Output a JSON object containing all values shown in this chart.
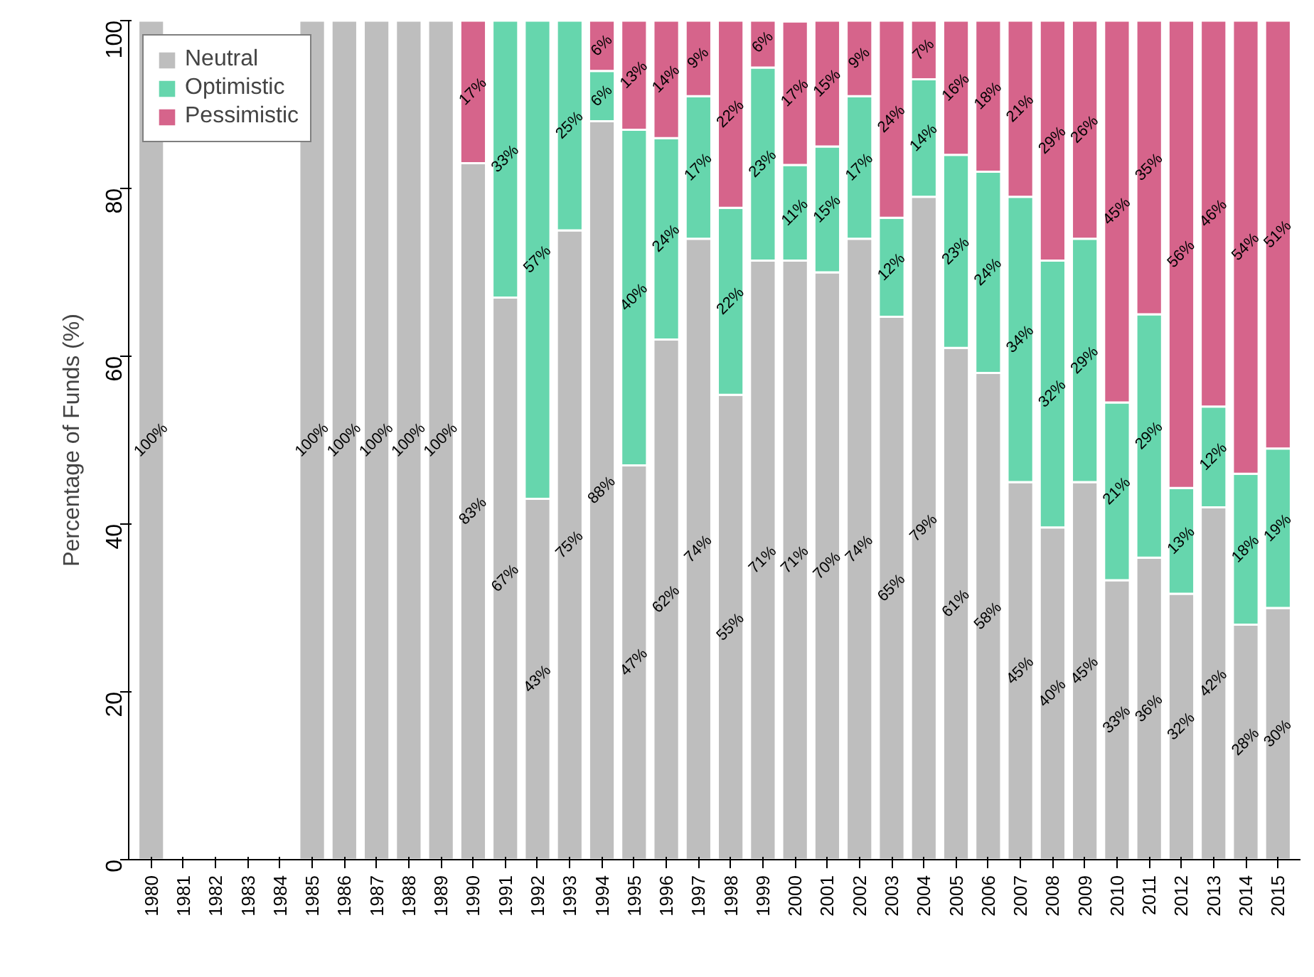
{
  "chart_data": {
    "type": "bar",
    "stacked": true,
    "ylabel": "Percentage of Funds (%)",
    "categories": [
      "1980",
      "1981",
      "1982",
      "1983",
      "1984",
      "1985",
      "1986",
      "1987",
      "1988",
      "1989",
      "1990",
      "1991",
      "1992",
      "1993",
      "1994",
      "1995",
      "1996",
      "1997",
      "1998",
      "1999",
      "2000",
      "2001",
      "2002",
      "2003",
      "2004",
      "2005",
      "2006",
      "2007",
      "2008",
      "2009",
      "2010",
      "2011",
      "2012",
      "2013",
      "2014",
      "2015"
    ],
    "ylim": [
      0,
      100
    ],
    "yticks": [
      0,
      20,
      40,
      60,
      80,
      100
    ],
    "legend": "top left",
    "grid": false,
    "series": [
      {
        "name": "Neutral",
        "color": "#bebebe",
        "values": [
          100,
          null,
          null,
          null,
          null,
          100,
          100,
          100,
          100,
          100,
          83,
          67,
          43,
          75,
          88,
          47,
          62,
          74,
          55.4,
          71.4,
          71.4,
          70,
          74,
          64.7,
          79,
          61,
          58,
          45,
          39.6,
          45,
          33.3,
          36,
          31.7,
          42,
          28,
          30
        ],
        "value_labels": [
          "100%",
          null,
          null,
          null,
          null,
          "100%",
          "100%",
          "100%",
          "100%",
          "100%",
          "83%",
          "67%",
          "43%",
          "75%",
          "88%",
          "47%",
          "62%",
          "74%",
          "55%",
          "71%",
          "71%",
          "70%",
          "74%",
          "65%",
          "79%",
          "61%",
          "58%",
          "45%",
          "40%",
          "45%",
          "33%",
          "36%",
          "32%",
          "42%",
          "28%",
          "30%"
        ]
      },
      {
        "name": "Optimistic",
        "color": "#66d6ad",
        "values": [
          null,
          null,
          null,
          null,
          null,
          null,
          null,
          null,
          null,
          null,
          null,
          33,
          57,
          25,
          6,
          40,
          24,
          17,
          22.3,
          23,
          11.4,
          15,
          17,
          11.8,
          14,
          23,
          24,
          34,
          31.8,
          29,
          21.2,
          29,
          12.6,
          12,
          18,
          19
        ],
        "value_labels": [
          null,
          null,
          null,
          null,
          null,
          null,
          null,
          null,
          null,
          null,
          null,
          "33%",
          "57%",
          "25%",
          "6%",
          "40%",
          "24%",
          "17%",
          "22%",
          "23%",
          "11%",
          "15%",
          "17%",
          "12%",
          "14%",
          "23%",
          "24%",
          "34%",
          "32%",
          "29%",
          "21%",
          "29%",
          "13%",
          "12%",
          "18%",
          "19%"
        ]
      },
      {
        "name": "Pessimistic",
        "color": "#d6648b",
        "values": [
          null,
          null,
          null,
          null,
          null,
          null,
          null,
          null,
          null,
          null,
          17,
          null,
          null,
          null,
          6,
          13,
          14,
          9,
          22.3,
          6,
          17.1,
          15,
          9,
          23.5,
          7,
          16,
          18,
          21,
          28.6,
          26,
          45.5,
          35,
          55.7,
          46,
          54,
          51
        ],
        "value_labels": [
          null,
          null,
          null,
          null,
          null,
          null,
          null,
          null,
          null,
          null,
          "17%",
          null,
          null,
          null,
          "6%",
          "13%",
          "14%",
          "9%",
          "22%",
          "6%",
          "17%",
          "15%",
          "9%",
          "24%",
          "7%",
          "16%",
          "18%",
          "21%",
          "29%",
          "26%",
          "45%",
          "35%",
          "56%",
          "46%",
          "54%",
          "51%"
        ]
      }
    ]
  }
}
